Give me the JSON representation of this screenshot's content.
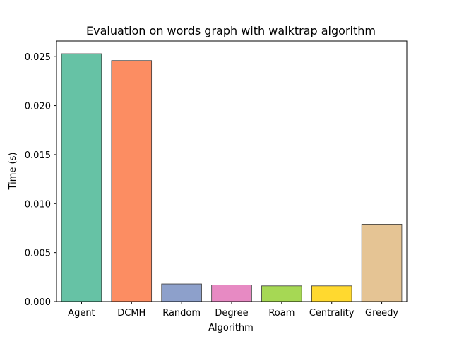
{
  "chart_data": {
    "type": "bar",
    "title": "Evaluation on words graph with walktrap algorithm",
    "xlabel": "Algorithm",
    "ylabel": "Time (s)",
    "categories": [
      "Agent",
      "DCMH",
      "Random",
      "Degree",
      "Roam",
      "Centrality",
      "Greedy"
    ],
    "values": [
      0.0253,
      0.0246,
      0.0018,
      0.0017,
      0.0016,
      0.0016,
      0.0079
    ],
    "colors": [
      "#66c2a5",
      "#fc8d62",
      "#8da0cb",
      "#e78ac3",
      "#a6d854",
      "#ffd92f",
      "#e5c494"
    ],
    "ylim": [
      0,
      0.0266
    ],
    "yticks": [
      0.0,
      0.005,
      0.01,
      0.015,
      0.02,
      0.025
    ],
    "ytick_labels": [
      "0.000",
      "0.005",
      "0.010",
      "0.015",
      "0.020",
      "0.025"
    ],
    "grid": false,
    "legend": "none"
  }
}
